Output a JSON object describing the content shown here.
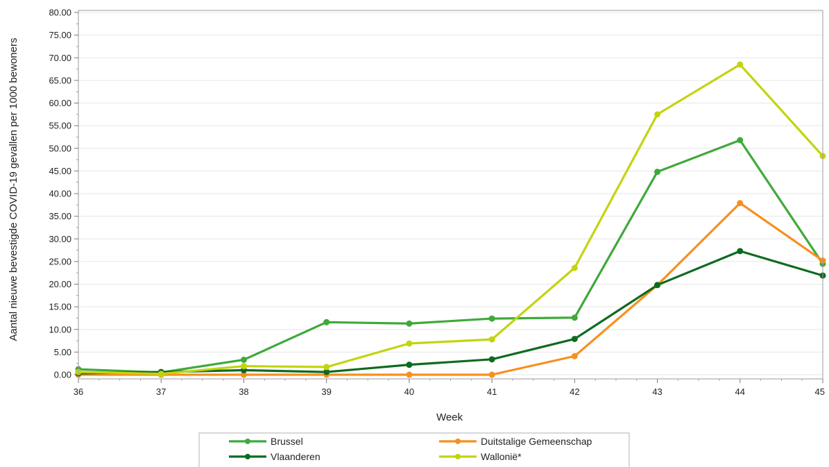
{
  "chart_data": {
    "type": "line",
    "xlabel": "Week",
    "ylabel": "Aantal nieuwe bevestigde COVID-19 gevallen per 1000 bewoners",
    "x": [
      "36",
      "37",
      "38",
      "39",
      "40",
      "41",
      "42",
      "43",
      "44",
      "45"
    ],
    "ylim": [
      0,
      80
    ],
    "yticks": [
      "0.00",
      "5.00",
      "10.00",
      "15.00",
      "20.00",
      "25.00",
      "30.00",
      "35.00",
      "40.00",
      "45.00",
      "50.00",
      "55.00",
      "60.00",
      "65.00",
      "70.00",
      "75.00",
      "80.00"
    ],
    "grid": "horizontal",
    "legend_position": "bottom",
    "series": [
      {
        "name": "Brussel",
        "color": "#3fa93a",
        "values": [
          1.2,
          0.5,
          3.3,
          11.6,
          11.3,
          12.4,
          12.6,
          44.8,
          51.8,
          24.5
        ]
      },
      {
        "name": "Duitstalige Gemeenschap",
        "color": "#f7901e",
        "values": [
          0.0,
          0.0,
          0.0,
          0.0,
          0.0,
          0.0,
          4.1,
          19.8,
          37.9,
          25.2
        ]
      },
      {
        "name": "Vlaanderen",
        "color": "#0d6b1f",
        "values": [
          0.3,
          0.6,
          1.0,
          0.6,
          2.2,
          3.4,
          7.9,
          19.8,
          27.3,
          21.9
        ]
      },
      {
        "name": "Wallonië*",
        "color": "#c3d40f",
        "values": [
          0.6,
          0.2,
          1.9,
          1.7,
          6.9,
          7.8,
          23.6,
          57.5,
          68.5,
          48.3
        ]
      }
    ]
  }
}
